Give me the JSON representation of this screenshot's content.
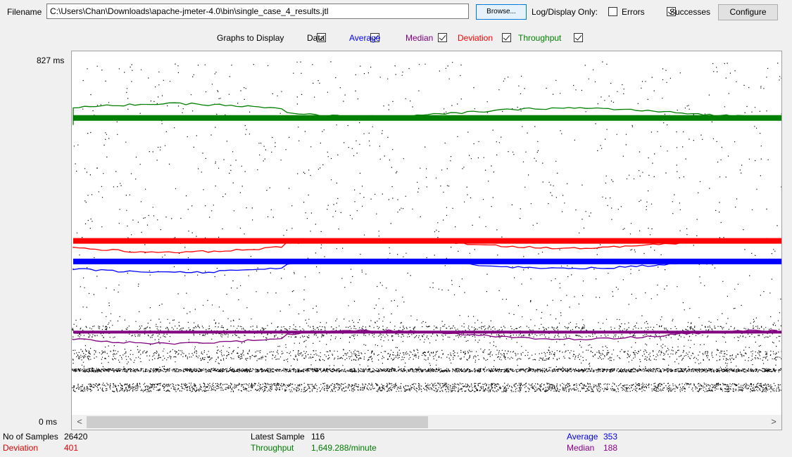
{
  "file": {
    "label": "Filename",
    "value": "C:\\Users\\Chan\\Downloads\\apache-jmeter-4.0\\bin\\single_case_4_results.jtl",
    "browse_label": "Browse...",
    "log_display_label": "Log/Display Only:",
    "errors_label": "Errors",
    "errors_checked": false,
    "successes_label": "Successes",
    "successes_checked": true,
    "configure_label": "Configure"
  },
  "graphs": {
    "label": "Graphs to Display",
    "options": [
      {
        "label": "Data",
        "checked": true,
        "color": "#000000"
      },
      {
        "label": "Average",
        "checked": true,
        "color": "#0000ff"
      },
      {
        "label": "Median",
        "checked": true,
        "color": "#800080"
      },
      {
        "label": "Deviation",
        "checked": true,
        "color": "#ff0000"
      },
      {
        "label": "Throughput",
        "checked": true,
        "color": "#008000"
      }
    ]
  },
  "axis": {
    "y_max_label": "827  ms",
    "y_min_label": "0  ms"
  },
  "chart_data": {
    "type": "scatter",
    "ylim": [
      0,
      827
    ],
    "series": [
      {
        "name": "Throughput",
        "color": "#008000",
        "level": 688
      },
      {
        "name": "Deviation",
        "color": "#ff0000",
        "level": 401
      },
      {
        "name": "Average",
        "color": "#0000ff",
        "level": 353
      },
      {
        "name": "Median",
        "color": "#800080",
        "level": 188
      }
    ]
  },
  "scrollbar": {
    "left_arrow": "<",
    "right_arrow": ">"
  },
  "stats": {
    "samples_label": "No of Samples",
    "samples_value": "26420",
    "deviation_label": "Deviation",
    "deviation_value": "401",
    "latest_label": "Latest Sample",
    "latest_value": "116",
    "throughput_label": "Throughput",
    "throughput_value": "1,649.288/minute",
    "average_label": "Average",
    "average_value": "353",
    "median_label": "Median",
    "median_value": "188"
  }
}
